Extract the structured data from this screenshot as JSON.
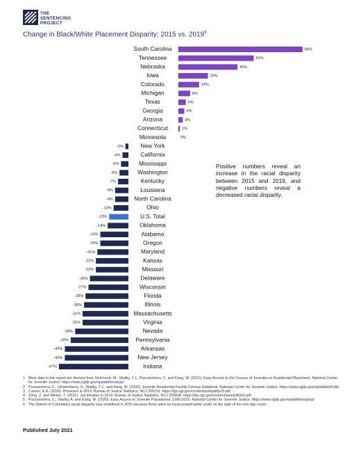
{
  "header": {
    "logo": [
      "THE",
      "SENTENCING",
      "PROJECT"
    ]
  },
  "chart_data": {
    "type": "hbar",
    "title": "Change in Black/White Placement Disparity; 2015 vs. 2019",
    "title_note": "6",
    "categories": [
      "South Carolina",
      "Tennessee",
      "Nebraska",
      "Iowa",
      "Colorado",
      "Michigan",
      "Texas",
      "Georgia",
      "Arizona",
      "Connecticut",
      "Minnesota",
      "New York",
      "California",
      "Mississippi",
      "Washington",
      "Kentucky",
      "Louisiana",
      "North Carolina",
      "Ohio",
      "U.S. Total",
      "Oklahoma",
      "Alabama",
      "Oregon",
      "Maryland",
      "Kansas",
      "Missouri",
      "Delaware",
      "Wisconsin",
      "Florida",
      "Illinois",
      "Massachusetts",
      "Virginia",
      "Nevada",
      "Pennsylvania",
      "Arkansas",
      "New Jersey",
      "Indiana"
    ],
    "values": [
      84,
      51,
      40,
      20,
      14,
      8,
      5,
      4,
      3,
      1,
      0,
      -2,
      -4,
      -5,
      -6,
      -7,
      -9,
      -9,
      -10,
      -13,
      -14,
      -19,
      -19,
      -21,
      -22,
      -22,
      -26,
      -27,
      -29,
      -30,
      -31,
      -31,
      -36,
      -39,
      -43,
      -43,
      -47
    ],
    "value_labels": [
      "84%",
      "51%",
      "40%",
      "20%",
      "14%",
      "8%",
      "5%",
      "4%",
      "3%",
      "1%",
      "0%",
      "-2%",
      "-4%",
      "-5%",
      "-6%",
      "-7%",
      "-9%",
      "-9%",
      "-10%",
      "-13%",
      "-14%",
      "-19%",
      "-19%",
      "-21%",
      "-22%",
      "-22%",
      "-26%",
      "-27%",
      "-29%",
      "-30%",
      "-31%",
      "-31%",
      "-36%",
      "-39%",
      "-43%",
      "-43%",
      "-47%"
    ],
    "colors": [
      "#7d45c4",
      "#7d45c4",
      "#7d45c4",
      "#7d45c4",
      "#7d45c4",
      "#7d45c4",
      "#7d45c4",
      "#7d45c4",
      "#7d45c4",
      "#7d45c4",
      "#7d45c4",
      "#1e2a52",
      "#1e2a52",
      "#1e2a52",
      "#1e2a52",
      "#1e2a52",
      "#1e2a52",
      "#1e2a52",
      "#1e2a52",
      "#3c72c8",
      "#1e2a52",
      "#1e2a52",
      "#1e2a52",
      "#1e2a52",
      "#1e2a52",
      "#1e2a52",
      "#1e2a52",
      "#1e2a52",
      "#1e2a52",
      "#1e2a52",
      "#1e2a52",
      "#1e2a52",
      "#1e2a52",
      "#1e2a52",
      "#1e2a52",
      "#1e2a52",
      "#1e2a52"
    ],
    "annotation": "Positive numbers reveal an increase in the racial disparity between 2015 and 2019, and negative numbers reveal a decreased racial disparity."
  },
  "footnotes": [
    {
      "number": "1",
      "text": "Most data in this report are derived from Sickmund, M., Sladky, T.J., Puzzanchera, C. and Kang, W. (2021). Easy Access to the Census of Juveniles in Residential Placement. National Center for Juvenile Justice. https://www.ojjdp.gov/ojstatbb/ezacjrp/"
    },
    {
      "number": "2",
      "text": "Puzzanchera, C., Hockenberry, S., Sladky, T.J., and Kang, W. (2020). Juvenile Residential Facility Census Databook. National Center for Juvenile Justice. https://www.ojjdp.gov/ojstatbb/jrfcdb/"
    },
    {
      "number": "3",
      "text": "Carson, E.A. (2020). Prisoners in 2019. Bureau of Justice Statistics. NCJ 255115. https://bjs.ojp.gov/content/pub/pdf/p19.pdf"
    },
    {
      "number": "4",
      "text": "Zeng, Z. and Minton, T. (2021). Jail Inmates in 2019. Bureau of Justice Statistics. NCJ 255608. https://bjs.ojp.gov/content/pub/pdf/ji19.pdf"
    },
    {
      "number": "5",
      "text": "Puzzanchera, C., Sladky, A. and Kang, W. (2020). Easy Access to Juvenile Populations: 1990-2019. National Center for Juvenile Justice. https://www.ojjdp.gov/ojstatbb/ezapop/"
    },
    {
      "number": "6",
      "text": "The District of Columbia's racial disparity was undefined in 2015 because there were no incarcerated white youth on the date of the one-day count."
    }
  ],
  "footer": {
    "published": "Published July 2021"
  }
}
